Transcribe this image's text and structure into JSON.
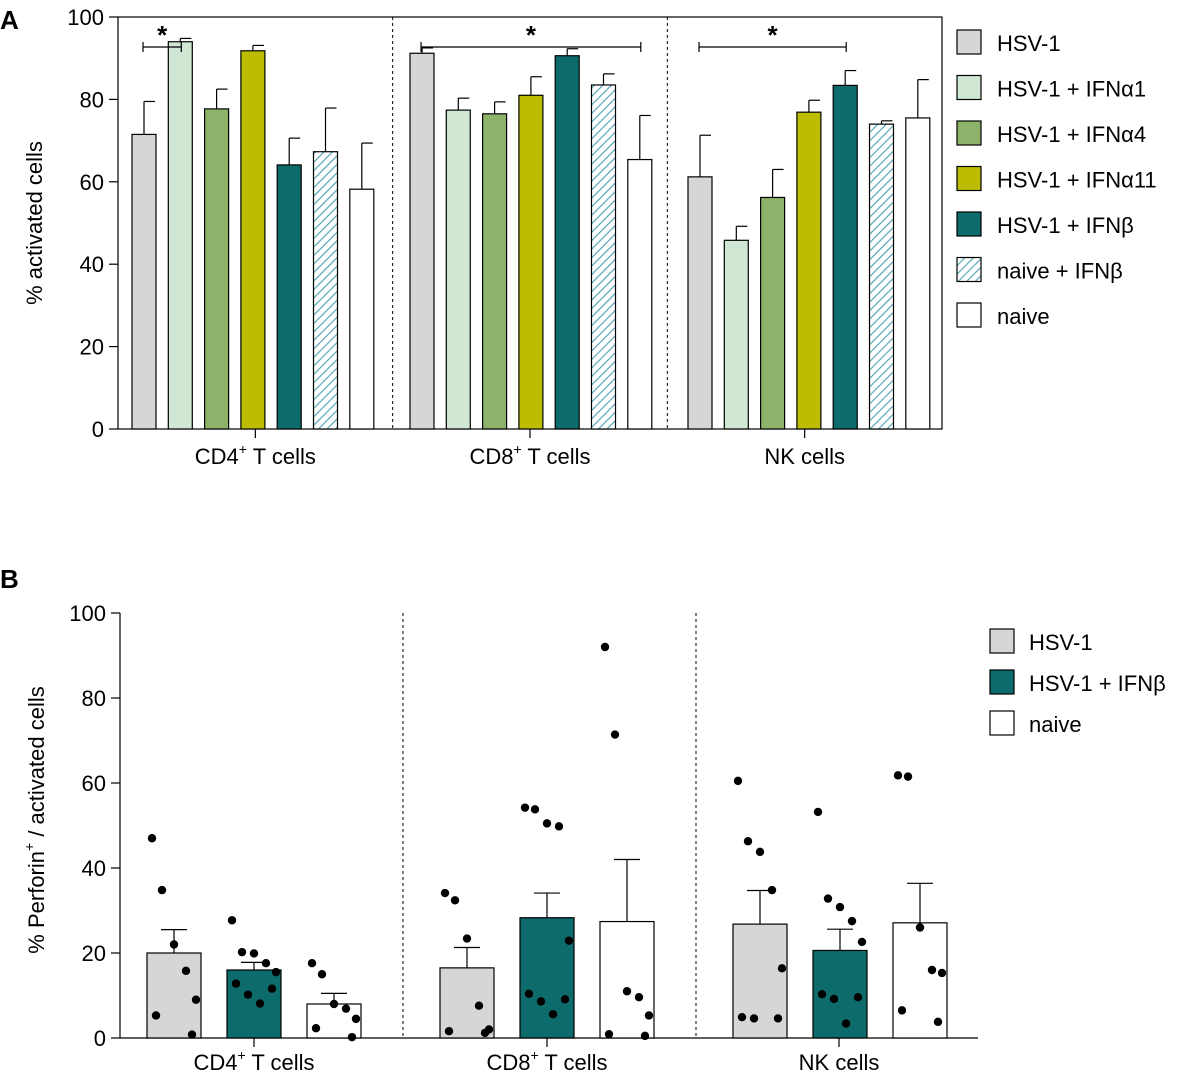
{
  "chart_data": [
    {
      "panel_label": "A",
      "type": "bar",
      "ylabel": "% activated cells",
      "ylim": [
        0,
        100
      ],
      "yticks": [
        "0",
        "20",
        "40",
        "60",
        "80",
        "100"
      ],
      "groups": [
        {
          "label": "CD4",
          "sup": "+",
          "tail": " T cells"
        },
        {
          "label": "CD8",
          "sup": "+",
          "tail": " T cells"
        },
        {
          "label": "NK cells",
          "sup": "",
          "tail": ""
        }
      ],
      "series": [
        {
          "name": "HSV-1",
          "color": "#d6d6d6",
          "pattern": "none",
          "values": [
            71.5,
            91.2,
            61.2
          ],
          "errors": [
            8.0,
            1.3,
            10.1
          ]
        },
        {
          "name": "HSV-1 + IFNα1",
          "color": "#cfe7d3",
          "pattern": "none",
          "values": [
            94.0,
            77.4,
            45.8
          ],
          "errors": [
            0.8,
            2.9,
            3.4
          ]
        },
        {
          "name": "HSV-1 + IFNα4",
          "color": "#8db36a",
          "pattern": "none",
          "values": [
            77.7,
            76.5,
            56.2
          ],
          "errors": [
            4.8,
            2.9,
            6.8
          ]
        },
        {
          "name": "HSV-1 + IFNα11",
          "color": "#bdbd00",
          "pattern": "none",
          "values": [
            91.8,
            81.0,
            76.9
          ],
          "errors": [
            1.3,
            4.5,
            2.9
          ]
        },
        {
          "name": "HSV-1 + IFNβ",
          "color": "#0e6b6b",
          "pattern": "none",
          "values": [
            64.1,
            90.6,
            83.4
          ],
          "errors": [
            6.5,
            1.7,
            3.6
          ]
        },
        {
          "name": "naive + IFNβ",
          "color": "#bfe0e6",
          "pattern": "hatch",
          "values": [
            67.3,
            83.5,
            74.0
          ],
          "errors": [
            10.6,
            2.7,
            0.8
          ]
        },
        {
          "name": "naive",
          "color": "#ffffff",
          "pattern": "none",
          "values": [
            58.2,
            65.4,
            75.5
          ],
          "errors": [
            11.2,
            10.7,
            9.3
          ]
        }
      ],
      "significance": [
        {
          "group": 0,
          "from_series": 0,
          "to_series": 1,
          "label": "*"
        },
        {
          "group": 1,
          "from_series": 0,
          "to_series": 6,
          "label": "*"
        },
        {
          "group": 2,
          "from_series": 0,
          "to_series": 4,
          "label": "*"
        }
      ]
    },
    {
      "panel_label": "B",
      "type": "bar",
      "ylabel": "% Perforin",
      "ylabel_sup": "+",
      "ylabel_tail": " / activated cells",
      "ylim": [
        0,
        100
      ],
      "yticks": [
        "0",
        "20",
        "40",
        "60",
        "80",
        "100"
      ],
      "groups": [
        {
          "label": "CD4",
          "sup": "+",
          "tail": " T cells"
        },
        {
          "label": "CD8",
          "sup": "+",
          "tail": " T cells"
        },
        {
          "label": "NK cells",
          "sup": "",
          "tail": ""
        }
      ],
      "series": [
        {
          "name": "HSV-1",
          "color": "#d6d6d6",
          "values": [
            20.0,
            16.5,
            26.8
          ],
          "errors": [
            5.5,
            4.8,
            7.9
          ],
          "points": [
            [
              47.0,
              34.8,
              22.0,
              15.8,
              9.0,
              5.3,
              0.8
            ],
            [
              34.1,
              32.4,
              23.4,
              7.6,
              2.0,
              1.6,
              1.2
            ],
            [
              60.5,
              46.3,
              43.8,
              34.8,
              16.4,
              4.9,
              4.6,
              4.6
            ]
          ]
        },
        {
          "name": "HSV-1 + IFNβ",
          "color": "#0e6b6b",
          "values": [
            16.0,
            28.3,
            20.6
          ],
          "errors": [
            1.8,
            5.8,
            5.0
          ],
          "points": [
            [
              27.7,
              20.2,
              19.9,
              17.6,
              15.5,
              12.8,
              11.6,
              10.2,
              8.1
            ],
            [
              54.2,
              53.8,
              50.5,
              49.8,
              22.9,
              10.4,
              9.1,
              8.6,
              5.6
            ],
            [
              53.2,
              32.8,
              30.8,
              27.5,
              22.6,
              10.3,
              9.6,
              9.2,
              3.4
            ]
          ]
        },
        {
          "name": "naive",
          "color": "#ffffff",
          "values": [
            8.0,
            27.4,
            27.1
          ],
          "errors": [
            2.5,
            14.6,
            9.3
          ],
          "points": [
            [
              17.6,
              15.0,
              8.0,
              6.9,
              4.5,
              2.3,
              0.2
            ],
            [
              92.0,
              71.4,
              11.0,
              9.6,
              5.3,
              0.9,
              0.5
            ],
            [
              61.8,
              61.5,
              26.0,
              16.0,
              15.3,
              6.5,
              3.8
            ]
          ]
        }
      ]
    }
  ]
}
